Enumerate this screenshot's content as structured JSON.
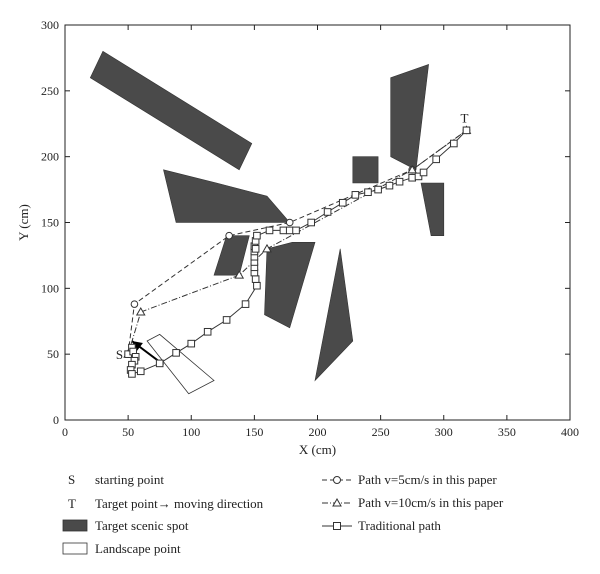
{
  "chart_data": {
    "type": "line",
    "xlabel": "X (cm)",
    "ylabel": "Y (cm)",
    "xlim": [
      0,
      400
    ],
    "ylim": [
      0,
      300
    ],
    "xticks": [
      0,
      50,
      100,
      150,
      200,
      250,
      300,
      350,
      400
    ],
    "yticks": [
      0,
      50,
      100,
      150,
      200,
      250,
      300
    ],
    "grid": false,
    "start": {
      "label": "S",
      "x": 50,
      "y": 50
    },
    "target": {
      "label": "T",
      "x": 318,
      "y": 220
    },
    "obstacles": [
      {
        "points": [
          [
            20,
            260
          ],
          [
            30,
            280
          ],
          [
            148,
            210
          ],
          [
            138,
            190
          ]
        ]
      },
      {
        "points": [
          [
            78,
            190
          ],
          [
            88,
            150
          ],
          [
            178,
            150
          ],
          [
            160,
            170
          ],
          [
            120,
            180
          ]
        ]
      },
      {
        "points": [
          [
            118,
            110
          ],
          [
            128,
            140
          ],
          [
            146,
            140
          ],
          [
            138,
            110
          ]
        ]
      },
      {
        "points": [
          [
            158,
            80
          ],
          [
            160,
            130
          ],
          [
            180,
            135
          ],
          [
            198,
            135
          ],
          [
            178,
            70
          ]
        ]
      },
      {
        "points": [
          [
            198,
            30
          ],
          [
            218,
            130
          ],
          [
            228,
            60
          ]
        ]
      },
      {
        "points": [
          [
            228,
            180
          ],
          [
            228,
            200
          ],
          [
            248,
            200
          ],
          [
            248,
            180
          ]
        ]
      },
      {
        "points": [
          [
            258,
            200
          ],
          [
            258,
            260
          ],
          [
            288,
            270
          ],
          [
            278,
            190
          ]
        ]
      },
      {
        "points": [
          [
            282,
            180
          ],
          [
            290,
            140
          ],
          [
            300,
            140
          ],
          [
            300,
            180
          ]
        ]
      }
    ],
    "landscape": {
      "points": [
        [
          65,
          60
        ],
        [
          75,
          65
        ],
        [
          118,
          30
        ],
        [
          98,
          20
        ]
      ]
    },
    "direction_arrow": {
      "from": [
        78,
        42
      ],
      "to": [
        53,
        60
      ]
    },
    "series": [
      {
        "name": "Path v=5cm/s in this paper",
        "style": "dashed",
        "marker": "circle",
        "x": [
          50,
          55,
          130,
          178,
          275,
          318
        ],
        "y": [
          50,
          88,
          140,
          150,
          190,
          220
        ]
      },
      {
        "name": "Path v=10cm/s in this paper",
        "style": "dashdot",
        "marker": "triangle",
        "x": [
          50,
          60,
          138,
          160,
          275,
          318
        ],
        "y": [
          50,
          82,
          110,
          130,
          190,
          220
        ]
      },
      {
        "name": "Traditional path",
        "style": "solid",
        "marker": "square",
        "x": [
          50,
          53,
          54,
          56,
          55,
          53,
          52,
          53,
          60,
          75,
          88,
          100,
          113,
          128,
          143,
          152,
          151,
          150,
          150,
          150,
          150,
          150,
          150,
          151,
          151,
          152,
          162,
          173,
          178,
          183,
          195,
          208,
          220,
          230,
          240,
          248,
          257,
          265,
          275,
          280,
          284,
          294,
          308,
          318
        ],
        "y": [
          50,
          55,
          52,
          48,
          45,
          42,
          38,
          35,
          37,
          43,
          51,
          58,
          67,
          76,
          88,
          102,
          107,
          112,
          116,
          120,
          124,
          128,
          132,
          130,
          136,
          140,
          144,
          144,
          144,
          144,
          150,
          158,
          165,
          171,
          173,
          175,
          178,
          181,
          184,
          185,
          188,
          198,
          210,
          220
        ]
      }
    ],
    "legend": {
      "placement": "bottom",
      "items": [
        {
          "key": "S",
          "text": "starting point"
        },
        {
          "key": "T",
          "text": "Target point→ moving direction"
        },
        {
          "key": "obstacle",
          "text": "Target scenic spot"
        },
        {
          "key": "landscape",
          "text": "Landscape point"
        },
        {
          "key": "circle",
          "text": "Path v=5cm/s in this paper"
        },
        {
          "key": "triangle",
          "text": "Path v=10cm/s in this paper"
        },
        {
          "key": "square",
          "text": "Traditional path"
        }
      ]
    },
    "colors": {
      "obstacle": "#4a4a4a",
      "line": "#333333",
      "axis": "#222222",
      "marker_fill": "#ffffff"
    }
  }
}
